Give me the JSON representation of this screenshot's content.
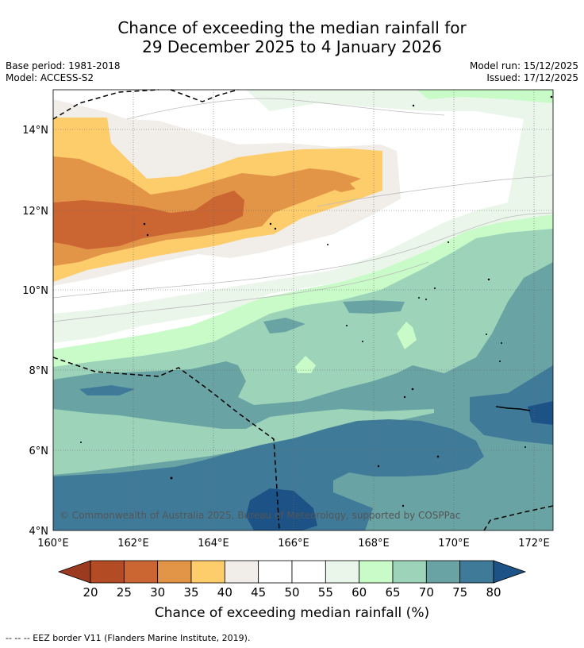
{
  "title": {
    "line1": "Chance of exceeding the median rainfall for",
    "line2": "29 December 2025 to 4 January 2026"
  },
  "meta": {
    "base_period": "Base period: 1981-2018",
    "model": "Model: ACCESS-S2",
    "model_run": "Model run: 15/12/2025",
    "issued": "Issued: 17/12/2025"
  },
  "map": {
    "lon_labels": [
      "160°E",
      "162°E",
      "164°E",
      "166°E",
      "168°E",
      "170°E",
      "172°E"
    ],
    "lat_labels": [
      "14°N",
      "12°N",
      "10°N",
      "8°N",
      "6°N",
      "4°N"
    ],
    "copyright": "© Commonwealth of Australia 2025, Bureau of Meteorology, supported by COSPPac"
  },
  "colorbar": {
    "ticks": [
      "20",
      "25",
      "30",
      "35",
      "40",
      "45",
      "50",
      "55",
      "60",
      "65",
      "70",
      "75",
      "80"
    ],
    "colors": [
      "#9b3a1e",
      "#b34b25",
      "#cb6633",
      "#e29547",
      "#fdcc6b",
      "#f1ede8",
      "#ffffff",
      "#ffffff",
      "#eaf6ea",
      "#c8fbc8",
      "#9cd3b9",
      "#6aa3a4",
      "#3f7b99",
      "#1d5286"
    ],
    "label": "Chance of exceeding median rainfall (%)"
  },
  "footer": "-- -- -- EEZ border V11 (Flanders Marine Institute, 2019)."
}
